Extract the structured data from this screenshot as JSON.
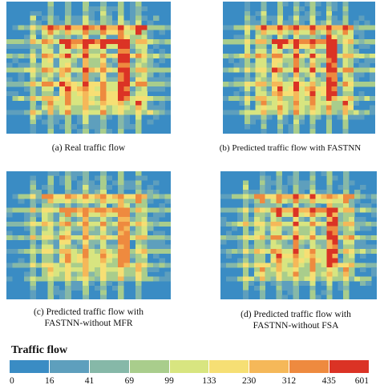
{
  "captions": {
    "a": "(a) Real traffic flow",
    "b": "(b) Predicted traffic flow with FASTNN",
    "c_line1": "(c) Predicted traffic flow with",
    "c_line2": "FASTNN-without MFR",
    "d_line1": "(d) Predicted traffic flow with",
    "d_line2": "FASTNN-without FSA"
  },
  "legend": {
    "title": "Traffic flow",
    "ticks": [
      "0",
      "16",
      "41",
      "69",
      "99",
      "133",
      "230",
      "312",
      "435",
      "601"
    ],
    "colors": [
      "#3a8cc4",
      "#5e9fbd",
      "#86b8a8",
      "#a9cd8c",
      "#d8e580",
      "#f6df74",
      "#f5b859",
      "#ee8a3f",
      "#db3325"
    ]
  },
  "chart_data": [
    {
      "type": "heatmap",
      "panel": "a",
      "title": "(a) Real traffic flow",
      "grid": [
        28,
        28
      ],
      "value_range": [
        0,
        601
      ],
      "intensity": 1.0
    },
    {
      "type": "heatmap",
      "panel": "b",
      "title": "(b) Predicted traffic flow with FASTNN",
      "grid": [
        28,
        28
      ],
      "value_range": [
        0,
        601
      ],
      "intensity": 0.97
    },
    {
      "type": "heatmap",
      "panel": "c",
      "title": "(c) Predicted traffic flow with FASTNN-without MFR",
      "grid": [
        28,
        28
      ],
      "value_range": [
        0,
        601
      ],
      "intensity": 0.88
    },
    {
      "type": "heatmap",
      "panel": "d",
      "title": "(d) Predicted traffic flow with FASTNN-without FSA",
      "grid": [
        28,
        28
      ],
      "value_range": [
        0,
        601
      ],
      "intensity": 0.92
    }
  ]
}
